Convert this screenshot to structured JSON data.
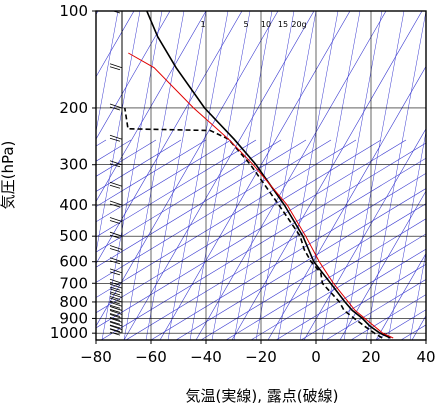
{
  "chart_data": {
    "type": "line",
    "chart_kind": "skew-T log-P thermodynamic diagram",
    "xlabel": "気温(実線), 露点(破線)",
    "ylabel": "気圧(hPa)",
    "x_ticks": [
      -80,
      -60,
      -40,
      -20,
      0,
      20,
      40
    ],
    "x_tick_labels": [
      "−80",
      "−60",
      "−40",
      "−20",
      "0",
      "20",
      "40"
    ],
    "y_ticks": [
      100,
      200,
      300,
      400,
      500,
      600,
      700,
      800,
      900,
      1000
    ],
    "y_tick_labels": [
      "100",
      "200",
      "300",
      "400",
      "500",
      "600",
      "700",
      "800",
      "900",
      "1000"
    ],
    "y_scale": "log",
    "xlim": [
      -80,
      40
    ],
    "ylim": [
      1050,
      100
    ],
    "mixing_ratio_labels": [
      "1",
      "5",
      "10",
      "15",
      "20g"
    ],
    "mixing_ratio_values": [
      1,
      5,
      10,
      15,
      20
    ],
    "grid": true,
    "colors": {
      "temperature": "#000000",
      "dewpoint": "#000000",
      "reference": "#e00000",
      "guide_lines": "#3a3ad0",
      "grid": "#000000"
    },
    "series": [
      {
        "style": "solid",
        "color": "#000000",
        "points": [
          {
            "p": 1035,
            "t": 27
          },
          {
            "p": 1000,
            "t": 23
          },
          {
            "p": 950,
            "t": 19
          },
          {
            "p": 900,
            "t": 16
          },
          {
            "p": 850,
            "t": 12
          },
          {
            "p": 800,
            "t": 9
          },
          {
            "p": 700,
            "t": 3
          },
          {
            "p": 600,
            "t": -4
          },
          {
            "p": 500,
            "t": -9
          },
          {
            "p": 400,
            "t": -17
          },
          {
            "p": 300,
            "t": -29
          },
          {
            "p": 250,
            "t": -38
          },
          {
            "p": 200,
            "t": -50
          },
          {
            "p": 150,
            "t": -62
          },
          {
            "p": 120,
            "t": -70
          },
          {
            "p": 100,
            "t": -75
          }
        ]
      },
      {
        "style": "dashed",
        "color": "#000000",
        "points": [
          {
            "p": 1035,
            "t": 24
          },
          {
            "p": 1000,
            "t": 21
          },
          {
            "p": 950,
            "t": 17
          },
          {
            "p": 900,
            "t": 13
          },
          {
            "p": 850,
            "t": 9
          },
          {
            "p": 800,
            "t": 7
          },
          {
            "p": 700,
            "t": 0
          },
          {
            "p": 650,
            "t": -1
          },
          {
            "p": 600,
            "t": -5
          },
          {
            "p": 550,
            "t": -8
          },
          {
            "p": 500,
            "t": -10
          },
          {
            "p": 400,
            "t": -19
          },
          {
            "p": 300,
            "t": -31
          },
          {
            "p": 250,
            "t": -40
          },
          {
            "p": 235,
            "t": -47
          },
          {
            "p": 232,
            "t": -77
          },
          {
            "p": 200,
            "t": -79
          }
        ]
      },
      {
        "style": "solid",
        "color": "#e00000",
        "points": [
          {
            "p": 1035,
            "t": 28
          },
          {
            "p": 1000,
            "t": 24
          },
          {
            "p": 850,
            "t": 13
          },
          {
            "p": 700,
            "t": 4
          },
          {
            "p": 600,
            "t": -2
          },
          {
            "p": 500,
            "t": -8
          },
          {
            "p": 400,
            "t": -16
          },
          {
            "p": 300,
            "t": -30
          },
          {
            "p": 250,
            "t": -40
          },
          {
            "p": 200,
            "t": -54
          },
          {
            "p": 150,
            "t": -70
          },
          {
            "p": 135,
            "t": -80
          }
        ]
      }
    ],
    "wind_profile": {
      "shown": true,
      "levels_hpa": [
        1000,
        975,
        950,
        925,
        900,
        875,
        850,
        825,
        800,
        775,
        750,
        725,
        700,
        650,
        600,
        550,
        500,
        450,
        400,
        350,
        300,
        250,
        200,
        150,
        100
      ]
    }
  }
}
